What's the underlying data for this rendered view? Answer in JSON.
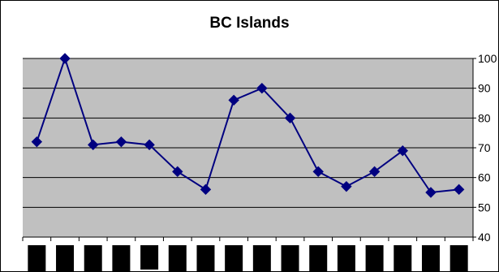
{
  "chart_data": {
    "type": "line",
    "title": "BC Islands",
    "xlabel": "",
    "ylabel": "",
    "ylim": [
      40,
      100
    ],
    "y_ticks": [
      40,
      50,
      60,
      70,
      80,
      90,
      100
    ],
    "y_axis_side": "right",
    "grid": true,
    "legend": "none",
    "x_category_labels": "redacted",
    "series": [
      {
        "values": [
          72,
          100,
          71,
          72,
          71,
          62,
          56,
          86,
          90,
          80,
          62,
          57,
          62,
          69,
          55,
          56
        ]
      }
    ],
    "colors": {
      "plot_background": "#c0c0c0",
      "series_line": "#000080",
      "gridline": "#000000",
      "redaction_block": "#000000"
    },
    "marker": "diamond"
  }
}
